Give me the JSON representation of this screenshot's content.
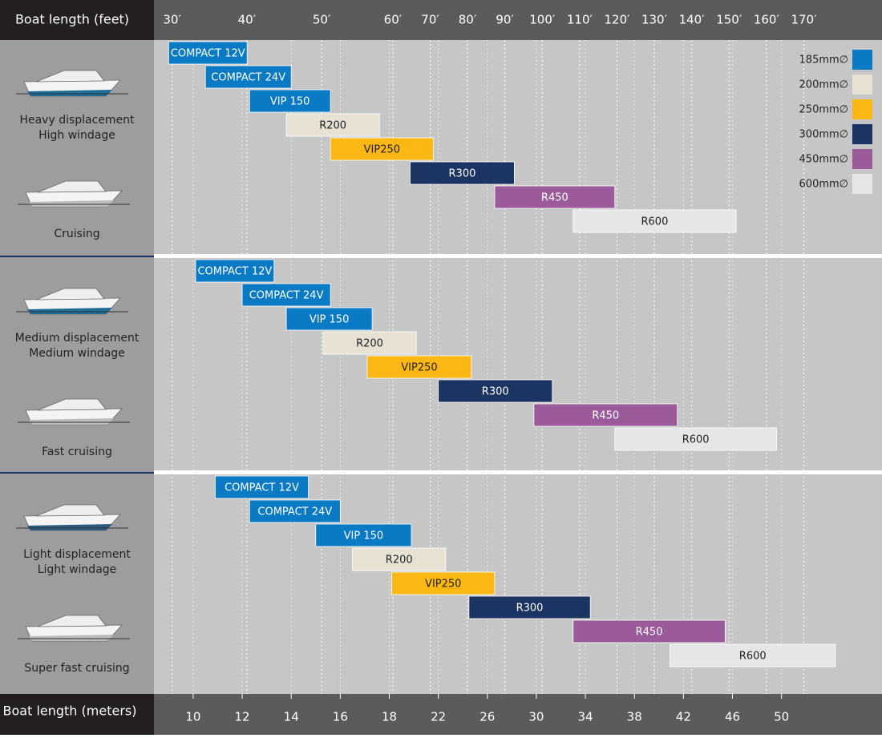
{
  "chart_data": {
    "type": "range_bar",
    "x_label_top": "Boat length (feet)",
    "x_label_bottom": "Boat length (meters)",
    "xlim": [
      8.4,
      58.2
    ],
    "xticks": [
      10,
      12,
      14,
      16,
      18,
      22,
      26,
      30,
      34,
      38,
      42,
      46,
      50
    ],
    "x2ticks": [
      {
        "value": 9.14,
        "label": "30′"
      },
      {
        "value": 12.19,
        "label": "40′"
      },
      {
        "value": 15.24,
        "label": "50′"
      },
      {
        "value": 18.29,
        "label": "60′"
      },
      {
        "value": 21.34,
        "label": "70′"
      },
      {
        "value": 24.38,
        "label": "80′"
      },
      {
        "value": 27.43,
        "label": "90′"
      },
      {
        "value": 30.48,
        "label": "100′"
      },
      {
        "value": 33.53,
        "label": "110′"
      },
      {
        "value": 36.58,
        "label": "120′"
      },
      {
        "value": 39.62,
        "label": "130′"
      },
      {
        "value": 42.67,
        "label": "140′"
      },
      {
        "value": 45.72,
        "label": "150′"
      },
      {
        "value": 48.77,
        "label": "160′"
      },
      {
        "value": 51.82,
        "label": "170′"
      }
    ],
    "grid": true,
    "legend": [
      {
        "label": "185mm∅",
        "color": "#0a7ac4"
      },
      {
        "label": "200mm∅",
        "color": "#e7e1d4"
      },
      {
        "label": "250mm∅",
        "color": "#fbb713"
      },
      {
        "label": "300mm∅",
        "color": "#1c3461"
      },
      {
        "label": "450mm∅",
        "color": "#9b5b9b"
      },
      {
        "label": "600mm∅",
        "color": "#e6e6e8"
      }
    ],
    "groups": [
      {
        "labels": [
          "Heavy displacement",
          "High windage",
          "Cruising"
        ],
        "bars": [
          {
            "name": "COMPACT 12V",
            "color": "#0a7ac4",
            "values": [
              9.0,
              12.2
            ]
          },
          {
            "name": "COMPACT 24V",
            "color": "#0a7ac4",
            "values": [
              10.5,
              14.0
            ]
          },
          {
            "name": "VIP 150",
            "color": "#0a7ac4",
            "values": [
              12.3,
              15.6
            ]
          },
          {
            "name": "R200",
            "color": "#e7e1d4",
            "values": [
              13.8,
              17.6
            ]
          },
          {
            "name": "VIP250",
            "color": "#fbb713",
            "values": [
              15.6,
              21.6
            ]
          },
          {
            "name": "R300",
            "color": "#1c3461",
            "values": [
              19.7,
              28.2
            ]
          },
          {
            "name": "R450",
            "color": "#9b5b9b",
            "values": [
              26.6,
              36.4
            ]
          },
          {
            "name": "R600",
            "color": "#e6e6e8",
            "values": [
              33.0,
              46.3
            ]
          }
        ]
      },
      {
        "labels": [
          "Medium displacement",
          "Medium windage",
          "Fast cruising"
        ],
        "bars": [
          {
            "name": "COMPACT 12V",
            "color": "#0a7ac4",
            "values": [
              10.1,
              13.3
            ]
          },
          {
            "name": "COMPACT 24V",
            "color": "#0a7ac4",
            "values": [
              12.0,
              15.6
            ]
          },
          {
            "name": "VIP 150",
            "color": "#0a7ac4",
            "values": [
              13.8,
              17.3
            ]
          },
          {
            "name": "R200",
            "color": "#e7e1d4",
            "values": [
              15.3,
              20.2
            ]
          },
          {
            "name": "VIP250",
            "color": "#fbb713",
            "values": [
              17.1,
              24.7
            ]
          },
          {
            "name": "R300",
            "color": "#1c3461",
            "values": [
              22.0,
              31.3
            ]
          },
          {
            "name": "R450",
            "color": "#9b5b9b",
            "values": [
              29.8,
              41.5
            ]
          },
          {
            "name": "R600",
            "color": "#e6e6e8",
            "values": [
              36.4,
              49.6
            ]
          }
        ]
      },
      {
        "labels": [
          "Light displacement",
          "Light windage",
          "Super fast cruising"
        ],
        "bars": [
          {
            "name": "COMPACT 12V",
            "color": "#0a7ac4",
            "values": [
              10.9,
              14.7
            ]
          },
          {
            "name": "COMPACT 24V",
            "color": "#0a7ac4",
            "values": [
              12.3,
              16.0
            ]
          },
          {
            "name": "VIP 150",
            "color": "#0a7ac4",
            "values": [
              15.0,
              19.8
            ]
          },
          {
            "name": "R200",
            "color": "#e7e1d4",
            "values": [
              16.5,
              22.6
            ]
          },
          {
            "name": "VIP250",
            "color": "#fbb713",
            "values": [
              18.2,
              26.6
            ]
          },
          {
            "name": "R300",
            "color": "#1c3461",
            "values": [
              24.5,
              34.4
            ]
          },
          {
            "name": "R450",
            "color": "#9b5b9b",
            "values": [
              33.0,
              45.4
            ]
          },
          {
            "name": "R600",
            "color": "#e6e6e8",
            "values": [
              40.9,
              54.4
            ]
          }
        ]
      }
    ]
  }
}
